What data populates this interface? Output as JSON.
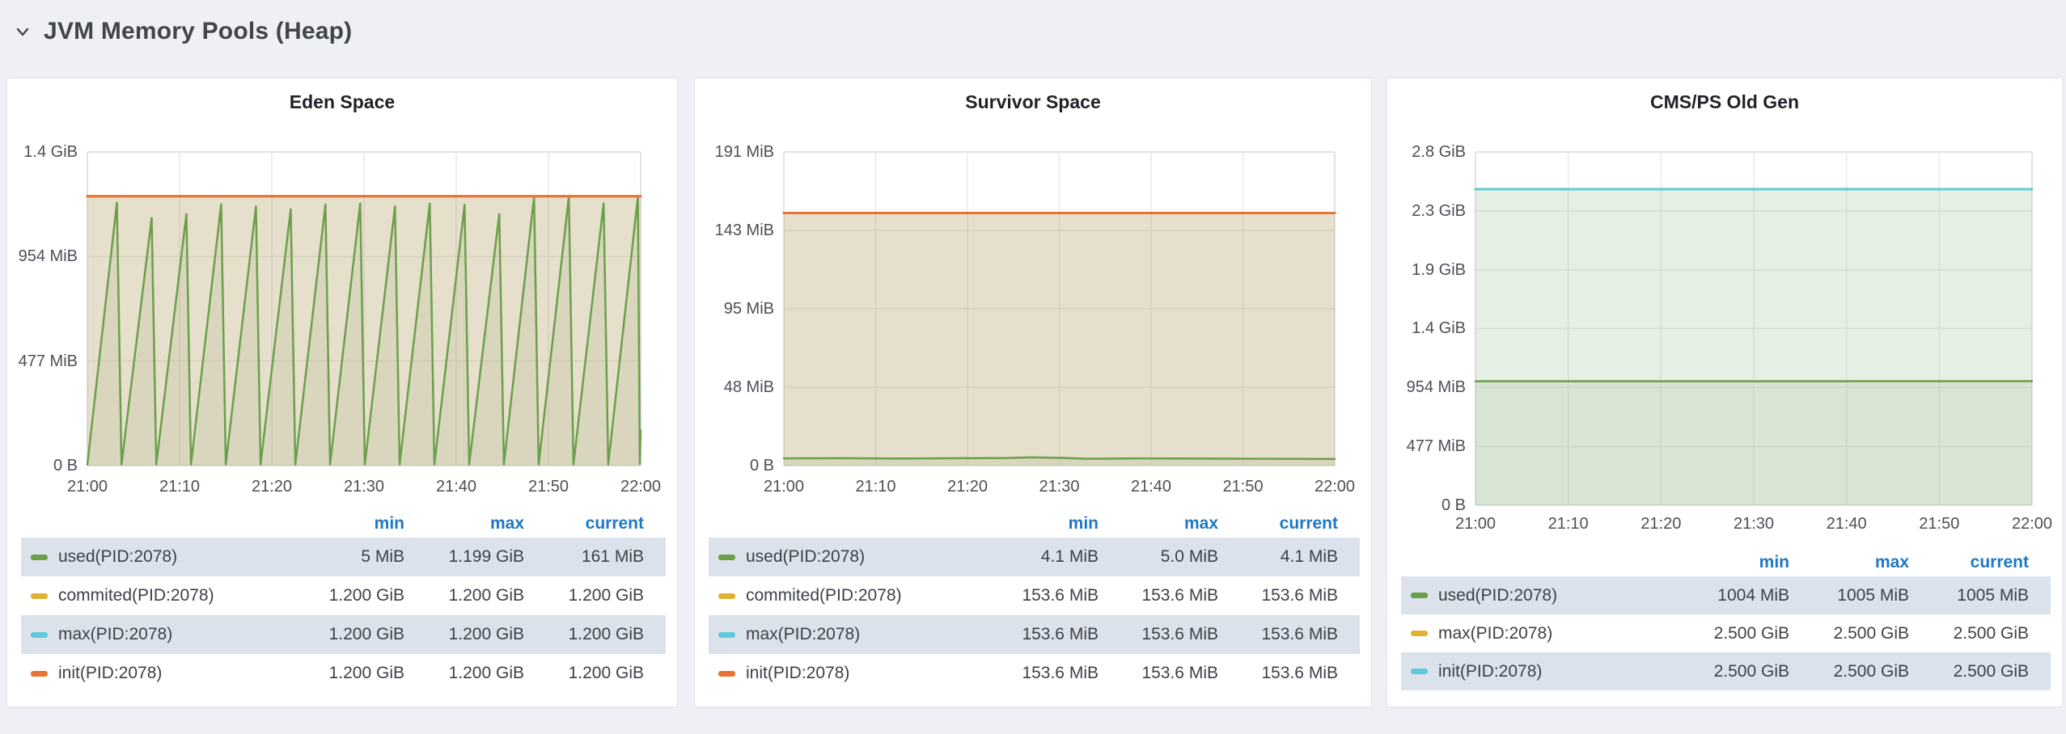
{
  "header": {
    "title": "JVM Memory Pools (Heap)",
    "collapse_icon": "chevron-down"
  },
  "colors": {
    "page_background": "#eef0f5",
    "panel_background": "#ffffff",
    "legend_header_blue": "#1f78c1",
    "row_highlight": "#dce2ec",
    "series_green": "#6ba04a",
    "series_yellow": "#e1b134",
    "series_cyan": "#5ec9d9",
    "series_orange": "#e87434"
  },
  "chart_data": [
    {
      "type": "area",
      "title": "Eden Space",
      "x_range_minutes": [
        0,
        60
      ],
      "xticks": [
        "21:00",
        "21:10",
        "21:20",
        "21:30",
        "21:40",
        "21:50",
        "22:00"
      ],
      "y_max_mib": 1431,
      "yticks": [
        {
          "label": "1.4 GiB",
          "mib": 1431
        },
        {
          "label": "954 MiB",
          "mib": 954
        },
        {
          "label": "477 MiB",
          "mib": 477
        },
        {
          "label": "0 B",
          "mib": 0
        }
      ],
      "legend_columns": [
        "min",
        "max",
        "current"
      ],
      "highlighted_rows": [
        0,
        2
      ],
      "series": [
        {
          "name": "used(PID:2078)",
          "color": "#6ba04a",
          "line_width": 2.5,
          "points_min_mib": [
            [
              0,
              5
            ],
            [
              3.2,
              1199
            ],
            [
              3.7,
              5
            ],
            [
              6.97,
              1130
            ],
            [
              7.47,
              5
            ],
            [
              10.74,
              1148
            ],
            [
              11.24,
              5
            ],
            [
              14.51,
              1192
            ],
            [
              15.01,
              5
            ],
            [
              18.28,
              1183
            ],
            [
              18.78,
              5
            ],
            [
              22.05,
              1170
            ],
            [
              22.55,
              5
            ],
            [
              25.82,
              1192
            ],
            [
              26.32,
              5
            ],
            [
              29.59,
              1196
            ],
            [
              30.09,
              5
            ],
            [
              33.36,
              1183
            ],
            [
              33.86,
              5
            ],
            [
              37.13,
              1196
            ],
            [
              37.63,
              5
            ],
            [
              40.9,
              1190
            ],
            [
              41.4,
              5
            ],
            [
              44.67,
              1148
            ],
            [
              45.17,
              5
            ],
            [
              48.44,
              1226
            ],
            [
              48.94,
              5
            ],
            [
              52.21,
              1228
            ],
            [
              52.71,
              5
            ],
            [
              55.98,
              1196
            ],
            [
              56.48,
              5
            ],
            [
              59.7,
              1228
            ],
            [
              59.9,
              8
            ],
            [
              60,
              161
            ]
          ],
          "stats": {
            "min": "5 MiB",
            "max": "1.199 GiB",
            "current": "161 MiB"
          }
        },
        {
          "name": "commited(PID:2078)",
          "color": "#e1b134",
          "line_width": 3,
          "points_min_mib": [
            [
              0,
              1228.8
            ],
            [
              60,
              1228.8
            ]
          ],
          "stats": {
            "min": "1.200 GiB",
            "max": "1.200 GiB",
            "current": "1.200 GiB"
          }
        },
        {
          "name": "max(PID:2078)",
          "color": "#5ec9d9",
          "line_width": 3,
          "points_min_mib": [
            [
              0,
              1228.8
            ],
            [
              60,
              1228.8
            ]
          ],
          "stats": {
            "min": "1.200 GiB",
            "max": "1.200 GiB",
            "current": "1.200 GiB"
          }
        },
        {
          "name": "init(PID:2078)",
          "color": "#e87434",
          "line_width": 3,
          "points_min_mib": [
            [
              0,
              1228.8
            ],
            [
              60,
              1228.8
            ]
          ],
          "stats": {
            "min": "1.200 GiB",
            "max": "1.200 GiB",
            "current": "1.200 GiB"
          }
        }
      ]
    },
    {
      "type": "area",
      "title": "Survivor Space",
      "x_range_minutes": [
        0,
        60
      ],
      "xticks": [
        "21:00",
        "21:10",
        "21:20",
        "21:30",
        "21:40",
        "21:50",
        "22:00"
      ],
      "y_max_mib": 190.7,
      "yticks": [
        {
          "label": "191 MiB",
          "mib": 190.7
        },
        {
          "label": "143 MiB",
          "mib": 143.1
        },
        {
          "label": "95 MiB",
          "mib": 95.4
        },
        {
          "label": "48 MiB",
          "mib": 47.7
        },
        {
          "label": "0 B",
          "mib": 0
        }
      ],
      "legend_columns": [
        "min",
        "max",
        "current"
      ],
      "highlighted_rows": [
        0,
        2
      ],
      "series": [
        {
          "name": "used(PID:2078)",
          "color": "#6ba04a",
          "line_width": 2.5,
          "points_min_mib": [
            [
              0,
              4.4
            ],
            [
              6,
              4.5
            ],
            [
              12,
              4.3
            ],
            [
              18,
              4.45
            ],
            [
              24,
              4.6
            ],
            [
              27,
              5
            ],
            [
              30,
              4.7
            ],
            [
              33,
              4.2
            ],
            [
              39,
              4.35
            ],
            [
              45,
              4.3
            ],
            [
              51,
              4.2
            ],
            [
              56,
              4.15
            ],
            [
              60,
              4.1
            ]
          ],
          "stats": {
            "min": "4.1 MiB",
            "max": "5.0 MiB",
            "current": "4.1 MiB"
          }
        },
        {
          "name": "commited(PID:2078)",
          "color": "#e1b134",
          "line_width": 3,
          "points_min_mib": [
            [
              0,
              153.6
            ],
            [
              60,
              153.6
            ]
          ],
          "stats": {
            "min": "153.6 MiB",
            "max": "153.6 MiB",
            "current": "153.6 MiB"
          }
        },
        {
          "name": "max(PID:2078)",
          "color": "#5ec9d9",
          "line_width": 3,
          "points_min_mib": [
            [
              0,
              153.6
            ],
            [
              60,
              153.6
            ]
          ],
          "stats": {
            "min": "153.6 MiB",
            "max": "153.6 MiB",
            "current": "153.6 MiB"
          }
        },
        {
          "name": "init(PID:2078)",
          "color": "#e87434",
          "line_width": 3,
          "points_min_mib": [
            [
              0,
              153.6
            ],
            [
              60,
              153.6
            ]
          ],
          "stats": {
            "min": "153.6 MiB",
            "max": "153.6 MiB",
            "current": "153.6 MiB"
          }
        }
      ]
    },
    {
      "type": "area",
      "title": "CMS/PS Old Gen",
      "x_range_minutes": [
        0,
        60
      ],
      "xticks": [
        "21:00",
        "21:10",
        "21:20",
        "21:30",
        "21:40",
        "21:50",
        "22:00"
      ],
      "y_max_mib": 2861,
      "yticks": [
        {
          "label": "2.8 GiB",
          "mib": 2861
        },
        {
          "label": "2.3 GiB",
          "mib": 2384
        },
        {
          "label": "1.9 GiB",
          "mib": 1907
        },
        {
          "label": "1.4 GiB",
          "mib": 1431
        },
        {
          "label": "954 MiB",
          "mib": 954
        },
        {
          "label": "477 MiB",
          "mib": 477
        },
        {
          "label": "0 B",
          "mib": 0
        }
      ],
      "legend_columns": [
        "min",
        "max",
        "current"
      ],
      "highlighted_rows": [
        0,
        2
      ],
      "series": [
        {
          "name": "used(PID:2078)",
          "color": "#6ba04a",
          "line_width": 2.5,
          "points_min_mib": [
            [
              0,
              1004
            ],
            [
              40,
              1004
            ],
            [
              41,
              1005
            ],
            [
              60,
              1005
            ]
          ],
          "stats": {
            "min": "1004 MiB",
            "max": "1005 MiB",
            "current": "1005 MiB"
          }
        },
        {
          "name": "max(PID:2078)",
          "color": "#e1b134",
          "line_width": 3,
          "points_min_mib": [
            [
              0,
              2560
            ],
            [
              60,
              2560
            ]
          ],
          "stats": {
            "min": "2.500 GiB",
            "max": "2.500 GiB",
            "current": "2.500 GiB"
          }
        },
        {
          "name": "init(PID:2078)",
          "color": "#5ec9d9",
          "line_width": 3,
          "points_min_mib": [
            [
              0,
              2560
            ],
            [
              60,
              2560
            ]
          ],
          "stats": {
            "min": "2.500 GiB",
            "max": "2.500 GiB",
            "current": "2.500 GiB"
          }
        }
      ]
    }
  ]
}
